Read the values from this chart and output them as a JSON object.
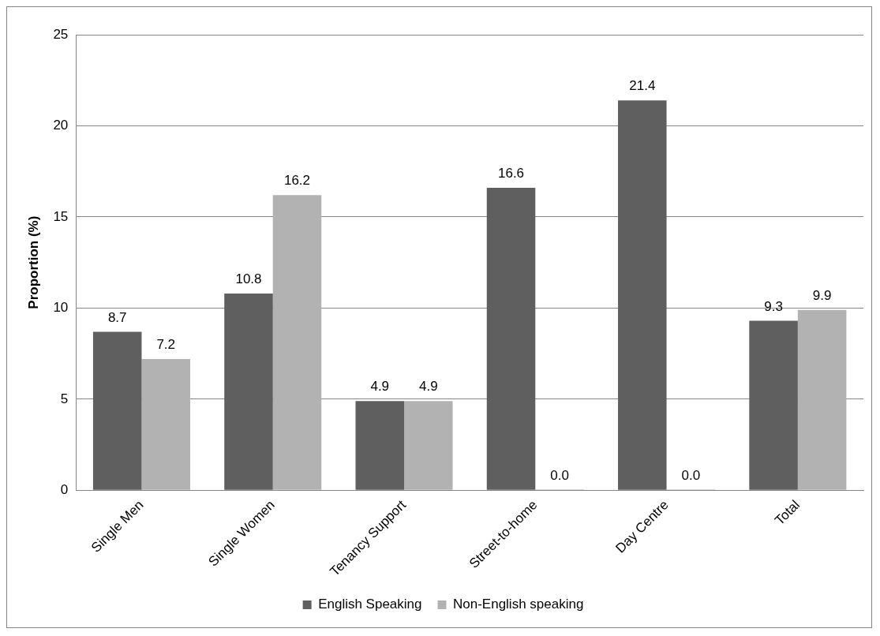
{
  "chart_data": {
    "type": "bar",
    "ylabel": "Proportion (%)",
    "categories": [
      "Single Men",
      "Single Women",
      "Tenancy Support",
      "Street-to-home",
      "Day Centre",
      "Total"
    ],
    "series": [
      {
        "name": "English Speaking",
        "color": "#5f5f5f",
        "values": [
          8.7,
          10.8,
          4.9,
          16.6,
          21.4,
          9.3
        ],
        "value_labels": [
          "8.7",
          "10.8",
          "4.9",
          "16.6",
          "21.4",
          "9.3"
        ]
      },
      {
        "name": "Non-English speaking",
        "color": "#b2b2b2",
        "values": [
          7.2,
          16.2,
          4.9,
          0,
          0,
          9.9
        ],
        "value_labels": [
          "7.2",
          "16.2",
          "4.9",
          "0.0",
          "0.0",
          "9.9"
        ]
      }
    ],
    "ylim": [
      0,
      25
    ],
    "yticks": [
      0,
      5,
      10,
      15,
      20,
      25
    ],
    "grid": "y",
    "legend": "bottom"
  }
}
